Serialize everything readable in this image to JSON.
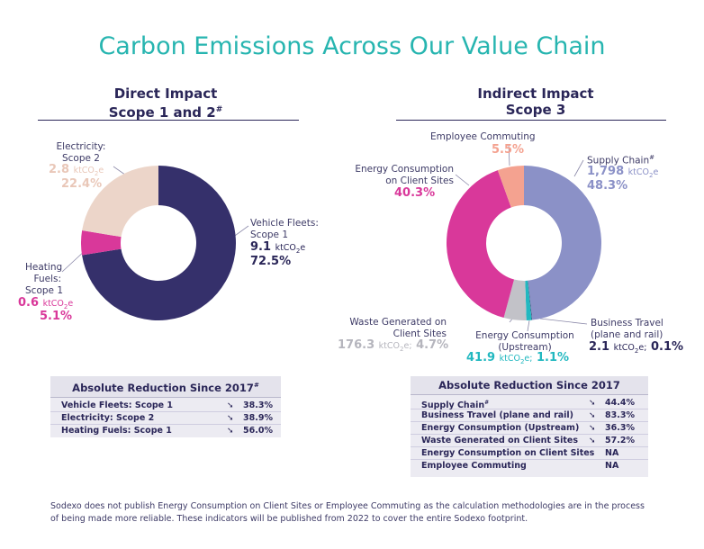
{
  "title": "Carbon Emissions Across Our Value Chain",
  "colors": {
    "title": "#27b5b0",
    "navy": "#35306b",
    "pink": "#d9389a",
    "beige": "#ecd5c9",
    "salmon": "#f4a290",
    "periwinkle": "#8b91c7",
    "teal": "#22b8c0",
    "gray": "#c2c2c8"
  },
  "chart_data": [
    {
      "type": "pie",
      "title": "Direct Impact Scope 1 and 2#",
      "title_line1": "Direct Impact",
      "title_line2": "Scope 1 and 2",
      "title_sup": "#",
      "unit": "ktCO2e",
      "slices": [
        {
          "name": "Vehicle Fleets: Scope 1",
          "label_lines": [
            "Vehicle Fleets:",
            "Scope 1"
          ],
          "value": 9.1,
          "value_text": "9.1",
          "percent": 72.5,
          "percent_text": "72.5%",
          "color": "#35306b"
        },
        {
          "name": "Heating Fuels: Scope 1",
          "label_lines": [
            "Heating",
            "Fuels:",
            "Scope 1"
          ],
          "value": 0.6,
          "value_text": "0.6",
          "percent": 5.1,
          "percent_text": "5.1%",
          "color": "#d9389a"
        },
        {
          "name": "Electricity: Scope 2",
          "label_lines": [
            "Electricity:",
            "Scope 2"
          ],
          "value": 2.8,
          "value_text": "2.8",
          "percent": 22.4,
          "percent_text": "22.4%",
          "color": "#ecd5c9"
        }
      ]
    },
    {
      "type": "pie",
      "title": "Indirect Impact Scope 3",
      "title_line1": "Indirect Impact",
      "title_line2": "Scope 3",
      "unit": "ktCO2e",
      "slices": [
        {
          "name": "Supply Chain",
          "label_lines": [
            "Supply Chain"
          ],
          "label_sup": "#",
          "value": 1798,
          "value_text": "1,798",
          "percent": 48.3,
          "percent_text": "48.3%",
          "color": "#8b91c7"
        },
        {
          "name": "Business Travel (plane and rail)",
          "label_lines": [
            "Business Travel",
            "(plane and rail)"
          ],
          "value": 2.1,
          "value_text": "2.1",
          "percent": 0.1,
          "percent_text": "0.1%",
          "color": "#2a2658"
        },
        {
          "name": "Energy Consumption (Upstream)",
          "label_lines": [
            "Energy Consumption",
            "(Upstream)"
          ],
          "value": 41.9,
          "value_text": "41.9",
          "percent": 1.1,
          "percent_text": "1.1%",
          "color": "#22b8c0"
        },
        {
          "name": "Waste Generated on Client Sites",
          "label_lines": [
            "Waste Generated on",
            "Client Sites"
          ],
          "value": 176.3,
          "value_text": "176.3",
          "percent": 4.7,
          "percent_text": "4.7%",
          "color": "#c2c2c8"
        },
        {
          "name": "Energy Consumption on Client Sites",
          "label_lines": [
            "Energy Consumption",
            "on Client Sites"
          ],
          "value": null,
          "percent": 40.3,
          "percent_text": "40.3%",
          "color": "#d9389a"
        },
        {
          "name": "Employee Commuting",
          "label_lines": [
            "Employee Commuting"
          ],
          "value": null,
          "percent": 5.5,
          "percent_text": "5.5%",
          "color": "#f4a290"
        }
      ]
    }
  ],
  "unit_text": {
    "kt": "ktCO",
    "sub": "2",
    "e": "e"
  },
  "tables": {
    "direct": {
      "header": "Absolute Reduction Since 2017",
      "header_sup": "#",
      "rows": [
        {
          "label": "Vehicle Fleets: Scope 1",
          "arrow": "➘",
          "value": "38.3%"
        },
        {
          "label": "Electricity: Scope 2",
          "arrow": "➘",
          "value": "38.9%"
        },
        {
          "label": "Heating Fuels: Scope 1",
          "arrow": "➘",
          "value": "56.0%"
        }
      ]
    },
    "indirect": {
      "header": "Absolute Reduction Since 2017",
      "rows": [
        {
          "label": "Supply Chain",
          "sup": "#",
          "arrow": "➘",
          "value": "44.4%"
        },
        {
          "label": "Business Travel (plane and rail)",
          "arrow": "➘",
          "value": "83.3%"
        },
        {
          "label": "Energy Consumption (Upstream)",
          "arrow": "➘",
          "value": "36.3%"
        },
        {
          "label": "Waste Generated on Client Sites",
          "arrow": "➘",
          "value": "57.2%"
        },
        {
          "label": "Energy Consumption on Client Sites",
          "arrow": "",
          "value": "NA"
        },
        {
          "label": "Employee Commuting",
          "arrow": "",
          "value": "NA"
        }
      ]
    }
  },
  "footnote": {
    "line1": "Sodexo does not publish Energy Consumption on Client Sites or Employee Commuting as the calculation methodologies are in the process",
    "line2": "of being made more reliable. These indicators will be published from 2022 to cover the entire Sodexo footprint."
  }
}
